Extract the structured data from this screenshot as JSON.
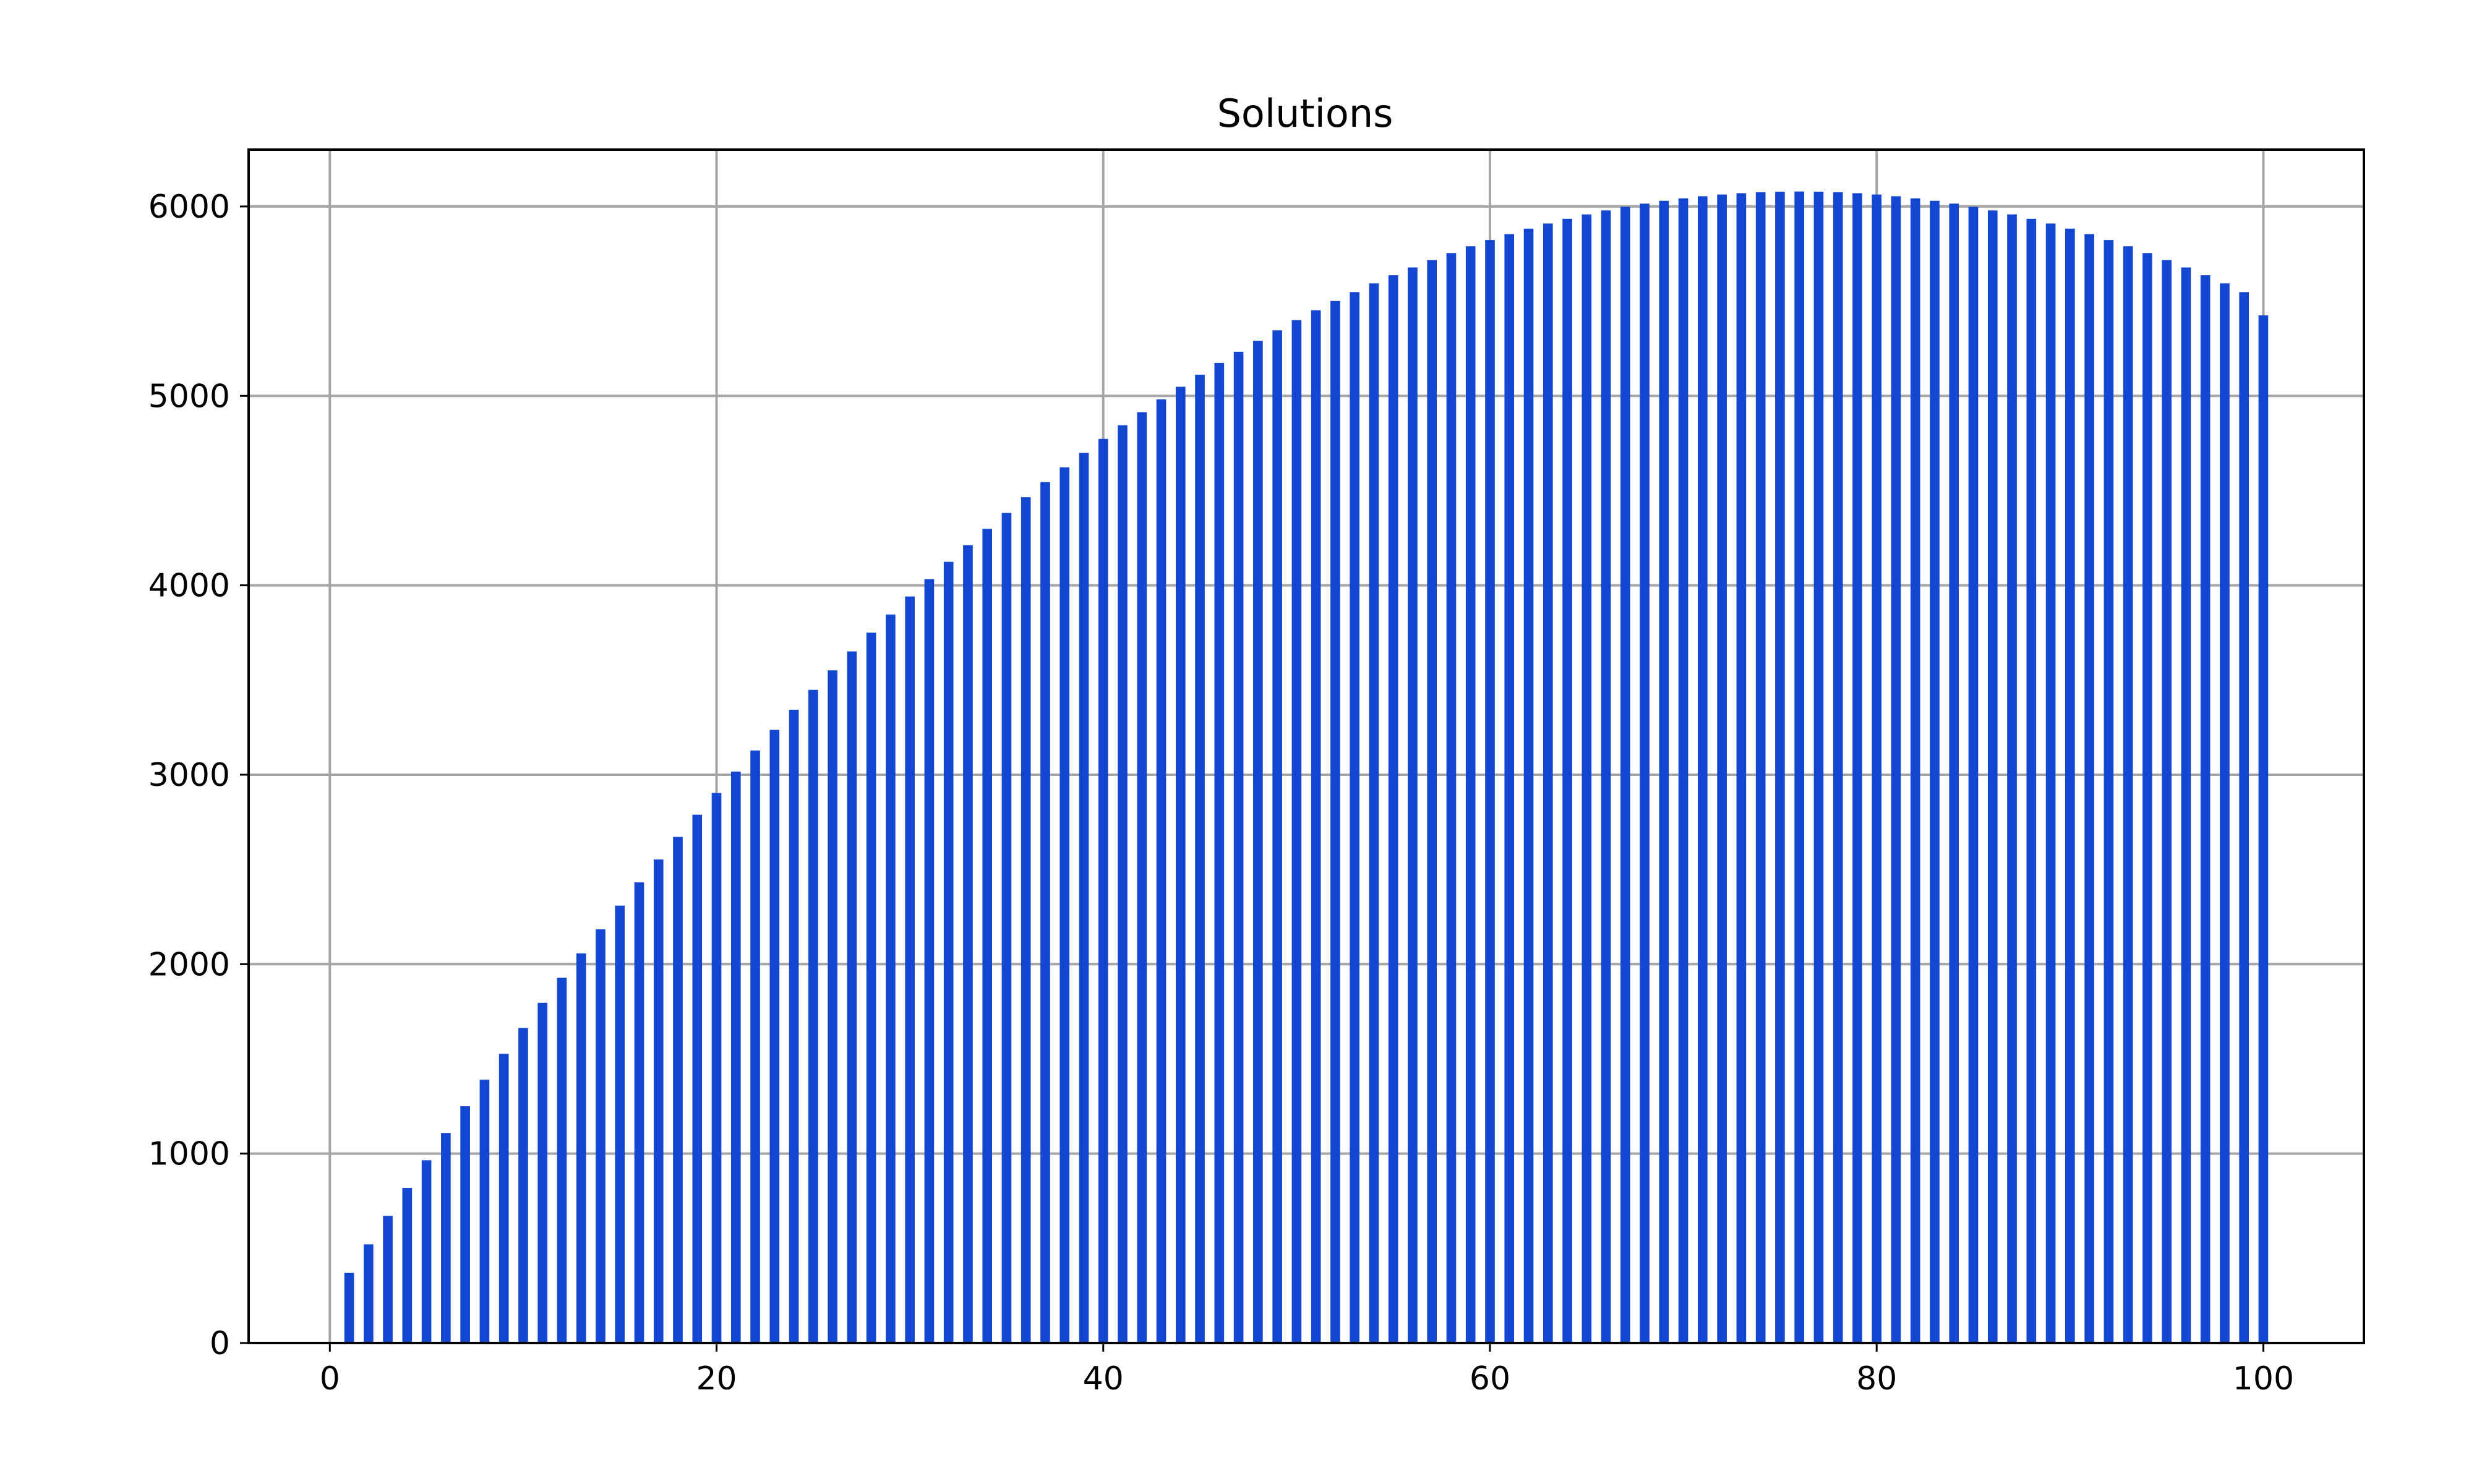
{
  "chart_data": {
    "type": "bar",
    "title": "Solutions",
    "xlabel": "",
    "ylabel": "",
    "x": [
      1,
      2,
      3,
      4,
      5,
      6,
      7,
      8,
      9,
      10,
      11,
      12,
      13,
      14,
      15,
      16,
      17,
      18,
      19,
      20,
      21,
      22,
      23,
      24,
      25,
      26,
      27,
      28,
      29,
      30,
      31,
      32,
      33,
      34,
      35,
      36,
      37,
      38,
      39,
      40,
      41,
      42,
      43,
      44,
      45,
      46,
      47,
      48,
      49,
      50,
      51,
      52,
      53,
      54,
      55,
      56,
      57,
      58,
      59,
      60,
      61,
      62,
      63,
      64,
      65,
      66,
      67,
      68,
      69,
      70,
      71,
      72,
      73,
      74,
      75,
      76,
      77,
      78,
      79,
      80,
      81,
      82,
      83,
      84,
      85,
      86,
      87,
      88,
      89,
      90,
      91,
      92,
      93,
      94,
      95,
      96,
      97,
      98,
      99,
      100
    ],
    "values": [
      370,
      521,
      671,
      819,
      965,
      1109,
      1250,
      1390,
      1527,
      1663,
      1796,
      1928,
      2057,
      2184,
      2309,
      2432,
      2553,
      2672,
      2789,
      2904,
      3017,
      3128,
      3237,
      3343,
      3448,
      3551,
      3651,
      3750,
      3846,
      3941,
      4033,
      4124,
      4212,
      4298,
      4382,
      4465,
      4545,
      4623,
      4699,
      4773,
      4845,
      4914,
      4982,
      5048,
      5112,
      5174,
      5233,
      5291,
      5346,
      5400,
      5452,
      5501,
      5548,
      5594,
      5637,
      5678,
      5717,
      5754,
      5790,
      5823,
      5854,
      5883,
      5910,
      5935,
      5958,
      5979,
      5998,
      6015,
      6030,
      6043,
      6054,
      6063,
      6070,
      6075,
      6078,
      6079,
      6078,
      6075,
      6070,
      6063,
      6054,
      6043,
      6030,
      6015,
      5998,
      5979,
      5958,
      5935,
      5910,
      5883,
      5854,
      5823,
      5790,
      5754,
      5717,
      5678,
      5637,
      5594,
      5548,
      5425
    ],
    "xlim": [
      -4.2,
      105.2
    ],
    "ylim": [
      0,
      6300
    ],
    "x_ticks": [
      0,
      20,
      40,
      60,
      80,
      100
    ],
    "y_ticks": [
      0,
      1000,
      2000,
      3000,
      4000,
      5000,
      6000
    ],
    "grid": true,
    "legend": "none",
    "bar_color": "#1447d1",
    "grid_color": "#a6a6a6",
    "axis_color": "#000000"
  }
}
